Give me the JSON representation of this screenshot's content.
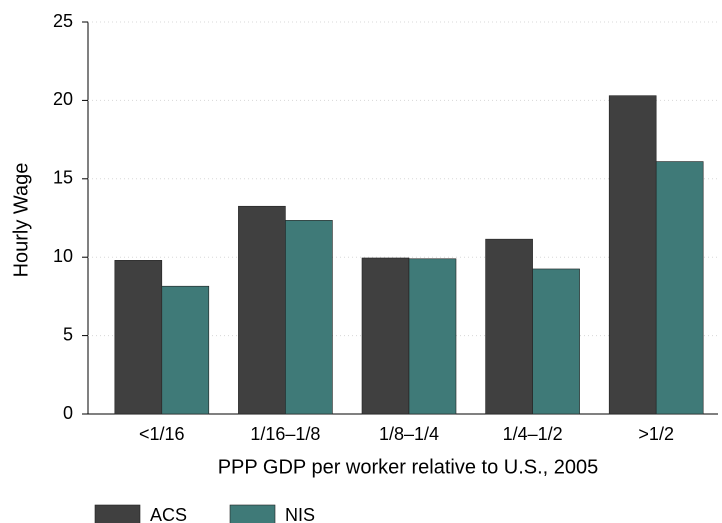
{
  "chart_data": {
    "type": "bar",
    "x_label": "PPP GDP per worker relative to U.S., 2005",
    "y_label": "Hourly Wage",
    "categories": [
      "<1/16",
      "1/16–1/8",
      "1/8–1/4",
      "1/4–1/2",
      ">1/2"
    ],
    "series": [
      {
        "name": "ACS",
        "color": "#404040",
        "values": [
          9.8,
          13.25,
          9.95,
          11.15,
          20.3
        ]
      },
      {
        "name": "NIS",
        "color": "#3f7a78",
        "values": [
          8.15,
          12.35,
          9.9,
          9.25,
          16.1
        ]
      }
    ],
    "ylim": [
      0,
      25
    ],
    "yticks": [
      0,
      5,
      10,
      15,
      20,
      25
    ],
    "grid": true,
    "legend": "bottom-left"
  }
}
